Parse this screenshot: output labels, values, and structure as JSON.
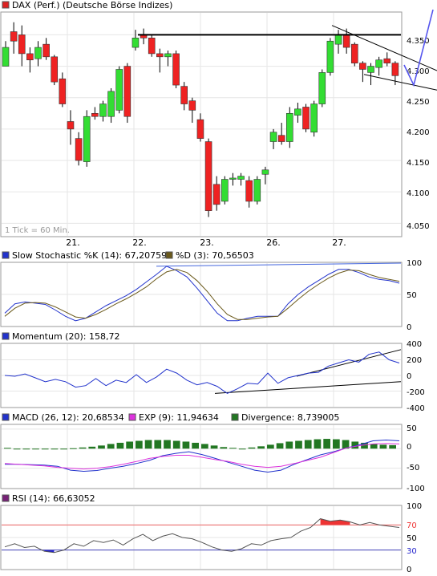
{
  "chart_data": [
    {
      "type": "candlestick",
      "title": "DAX (Perf.) (Deutsche Börse Indizes)",
      "note": "1 Tick = 60 Min.",
      "x_labels": [
        "21.",
        "22.",
        "23.",
        "26.",
        "27."
      ],
      "y_ticks": [
        "4.350",
        "4.300",
        "4.250",
        "4.200",
        "4.150",
        "4.100",
        "4.050"
      ],
      "y_tick_values": [
        4350,
        4300,
        4250,
        4200,
        4150,
        4100,
        4050
      ],
      "ylim": [
        4030,
        4385
      ],
      "grid": true,
      "colors": {
        "up": "#33dd33",
        "down": "#ee2222",
        "lines": "#000000",
        "projection": "#5555ee"
      },
      "candles": [
        {
          "o": 4300,
          "h": 4340,
          "l": 4300,
          "c": 4330
        },
        {
          "o": 4355,
          "h": 4370,
          "l": 4320,
          "c": 4340
        },
        {
          "o": 4350,
          "h": 4365,
          "l": 4300,
          "c": 4320
        },
        {
          "o": 4320,
          "h": 4330,
          "l": 4290,
          "c": 4310
        },
        {
          "o": 4312,
          "h": 4340,
          "l": 4300,
          "c": 4330
        },
        {
          "o": 4335,
          "h": 4345,
          "l": 4310,
          "c": 4315
        },
        {
          "o": 4315,
          "h": 4318,
          "l": 4270,
          "c": 4275
        },
        {
          "o": 4280,
          "h": 4290,
          "l": 4235,
          "c": 4240
        },
        {
          "o": 4212,
          "h": 4230,
          "l": 4175,
          "c": 4200
        },
        {
          "o": 4185,
          "h": 4195,
          "l": 4142,
          "c": 4150
        },
        {
          "o": 4148,
          "h": 4230,
          "l": 4140,
          "c": 4220
        },
        {
          "o": 4225,
          "h": 4235,
          "l": 4215,
          "c": 4220
        },
        {
          "o": 4220,
          "h": 4245,
          "l": 4212,
          "c": 4240
        },
        {
          "o": 4220,
          "h": 4265,
          "l": 4210,
          "c": 4260
        },
        {
          "o": 4230,
          "h": 4300,
          "l": 4225,
          "c": 4295
        },
        {
          "o": 4300,
          "h": 4305,
          "l": 4210,
          "c": 4220
        },
        {
          "o": 4330,
          "h": 4358,
          "l": 4325,
          "c": 4345
        },
        {
          "o": 4350,
          "h": 4360,
          "l": 4335,
          "c": 4345
        },
        {
          "o": 4345,
          "h": 4350,
          "l": 4315,
          "c": 4320
        },
        {
          "o": 4320,
          "h": 4328,
          "l": 4290,
          "c": 4315
        },
        {
          "o": 4315,
          "h": 4325,
          "l": 4300,
          "c": 4320
        },
        {
          "o": 4320,
          "h": 4325,
          "l": 4265,
          "c": 4270
        },
        {
          "o": 4268,
          "h": 4275,
          "l": 4230,
          "c": 4240
        },
        {
          "o": 4245,
          "h": 4250,
          "l": 4210,
          "c": 4230
        },
        {
          "o": 4215,
          "h": 4225,
          "l": 4180,
          "c": 4185
        },
        {
          "o": 4180,
          "h": 4185,
          "l": 4060,
          "c": 4070
        },
        {
          "o": 4112,
          "h": 4125,
          "l": 4070,
          "c": 4080
        },
        {
          "o": 4085,
          "h": 4125,
          "l": 4080,
          "c": 4120
        },
        {
          "o": 4120,
          "h": 4130,
          "l": 4110,
          "c": 4122
        },
        {
          "o": 4120,
          "h": 4130,
          "l": 4110,
          "c": 4125
        },
        {
          "o": 4118,
          "h": 4125,
          "l": 4075,
          "c": 4085
        },
        {
          "o": 4085,
          "h": 4125,
          "l": 4080,
          "c": 4120
        },
        {
          "o": 4128,
          "h": 4140,
          "l": 4112,
          "c": 4135
        },
        {
          "o": 4180,
          "h": 4200,
          "l": 4168,
          "c": 4195
        },
        {
          "o": 4190,
          "h": 4210,
          "l": 4175,
          "c": 4180
        },
        {
          "o": 4180,
          "h": 4235,
          "l": 4170,
          "c": 4225
        },
        {
          "o": 4222,
          "h": 4242,
          "l": 4210,
          "c": 4232
        },
        {
          "o": 4235,
          "h": 4240,
          "l": 4195,
          "c": 4200
        },
        {
          "o": 4195,
          "h": 4245,
          "l": 4188,
          "c": 4240
        },
        {
          "o": 4240,
          "h": 4295,
          "l": 4235,
          "c": 4290
        },
        {
          "o": 4290,
          "h": 4345,
          "l": 4285,
          "c": 4340
        },
        {
          "o": 4335,
          "h": 4358,
          "l": 4320,
          "c": 4350
        },
        {
          "o": 4350,
          "h": 4360,
          "l": 4320,
          "c": 4330
        },
        {
          "o": 4335,
          "h": 4338,
          "l": 4300,
          "c": 4305
        },
        {
          "o": 4305,
          "h": 4308,
          "l": 4275,
          "c": 4295
        },
        {
          "o": 4290,
          "h": 4305,
          "l": 4270,
          "c": 4300
        },
        {
          "o": 4298,
          "h": 4315,
          "l": 4285,
          "c": 4310
        },
        {
          "o": 4312,
          "h": 4322,
          "l": 4300,
          "c": 4305
        },
        {
          "o": 4305,
          "h": 4308,
          "l": 4270,
          "c": 4285
        }
      ]
    },
    {
      "type": "line",
      "name": "slow-stochastic",
      "legend": [
        {
          "label": "Slow Stochastic %K (14): 67,20759",
          "color": "#2233cc"
        },
        {
          "label": "%D (3): 70,56503",
          "color": "#6b5a1c"
        }
      ],
      "y_ticks": [
        "100",
        "50",
        "0"
      ],
      "y_tick_values": [
        100,
        50,
        0
      ],
      "ylim": [
        0,
        100
      ],
      "series": [
        {
          "name": "%K",
          "values": [
            20,
            35,
            38,
            36,
            34,
            25,
            15,
            8,
            12,
            22,
            32,
            40,
            48,
            58,
            70,
            82,
            95,
            88,
            78,
            60,
            40,
            20,
            8,
            8,
            12,
            15,
            15,
            15,
            35,
            50,
            62,
            72,
            82,
            90,
            90,
            85,
            78,
            74,
            72,
            68
          ]
        },
        {
          "name": "%D",
          "values": [
            15,
            28,
            36,
            37,
            36,
            30,
            22,
            14,
            12,
            18,
            26,
            35,
            43,
            52,
            62,
            75,
            86,
            90,
            85,
            72,
            55,
            35,
            18,
            10,
            10,
            12,
            14,
            15,
            28,
            42,
            55,
            66,
            76,
            84,
            89,
            88,
            82,
            77,
            74,
            71
          ]
        }
      ]
    },
    {
      "type": "line",
      "name": "momentum",
      "legend": [
        {
          "label": "Momentum (20): 158,72",
          "color": "#2233cc"
        }
      ],
      "y_ticks": [
        "400",
        "200",
        "0",
        "-200",
        "-400"
      ],
      "y_tick_values": [
        400,
        200,
        0,
        -200,
        -400
      ],
      "ylim": [
        -400,
        400
      ],
      "series": [
        {
          "name": "Momentum",
          "values": [
            0,
            -10,
            20,
            -30,
            -80,
            -50,
            -80,
            -150,
            -130,
            -40,
            -130,
            -60,
            -90,
            10,
            -90,
            -20,
            80,
            30,
            -60,
            -120,
            -90,
            -140,
            -230,
            -170,
            -100,
            -110,
            30,
            -100,
            -30,
            0,
            30,
            40,
            120,
            160,
            200,
            170,
            270,
            300,
            200,
            159
          ]
        }
      ]
    },
    {
      "type": "line",
      "name": "macd",
      "legend": [
        {
          "label": "MACD (26, 12): 20,68534",
          "color": "#2233cc"
        },
        {
          "label": "EXP (9): 11,94634",
          "color": "#dd33dd"
        },
        {
          "label": "Divergence: 8,739005",
          "color": "#227722"
        }
      ],
      "y_ticks": [
        "50",
        "0",
        "-50",
        "-100"
      ],
      "y_tick_values": [
        50,
        0,
        -50,
        -100
      ],
      "ylim": [
        -100,
        60
      ],
      "series": [
        {
          "name": "MACD",
          "values": [
            -40,
            -40,
            -41,
            -42,
            -45,
            -55,
            -58,
            -56,
            -50,
            -45,
            -38,
            -30,
            -18,
            -12,
            -8,
            -15,
            -25,
            -35,
            -45,
            -55,
            -60,
            -55,
            -40,
            -28,
            -16,
            -8,
            2,
            10,
            20,
            22,
            20
          ]
        },
        {
          "name": "EXP",
          "values": [
            -38,
            -40,
            -42,
            -44,
            -48,
            -50,
            -52,
            -50,
            -46,
            -40,
            -33,
            -25,
            -20,
            -17,
            -17,
            -22,
            -28,
            -33,
            -40,
            -45,
            -48,
            -45,
            -38,
            -30,
            -22,
            -10,
            2,
            8,
            12,
            13,
            12
          ]
        },
        {
          "name": "Divergence",
          "values": [
            2,
            0,
            0,
            0,
            0,
            0,
            0,
            1,
            3,
            5,
            8,
            12,
            15,
            18,
            20,
            22,
            22,
            22,
            20,
            18,
            15,
            12,
            8,
            4,
            2,
            0,
            3,
            6,
            10,
            14,
            18,
            20,
            22,
            24,
            25,
            24,
            22,
            18,
            15,
            12,
            10,
            9
          ]
        }
      ]
    },
    {
      "type": "line",
      "name": "rsi",
      "legend": [
        {
          "label": "RSI (14): 66,63052",
          "color": "#555555"
        }
      ],
      "y_ticks": [
        "100",
        "70",
        "50",
        "30",
        "0"
      ],
      "y_tick_values": [
        100,
        70,
        50,
        30,
        0
      ],
      "ylim": [
        0,
        100
      ],
      "reference_lines": [
        70,
        30
      ],
      "colors": {
        "overbought": "#ee3333",
        "oversold": "#2222cc",
        "ref70": "#ee6666",
        "ref30": "#4444bb"
      },
      "series": [
        {
          "name": "RSI",
          "values": [
            35,
            40,
            34,
            36,
            28,
            26,
            30,
            40,
            36,
            45,
            42,
            46,
            38,
            48,
            55,
            45,
            52,
            56,
            50,
            48,
            42,
            35,
            30,
            28,
            32,
            40,
            38,
            45,
            48,
            50,
            60,
            66,
            80,
            76,
            78,
            75,
            70,
            74,
            70,
            68,
            66
          ]
        }
      ]
    }
  ]
}
